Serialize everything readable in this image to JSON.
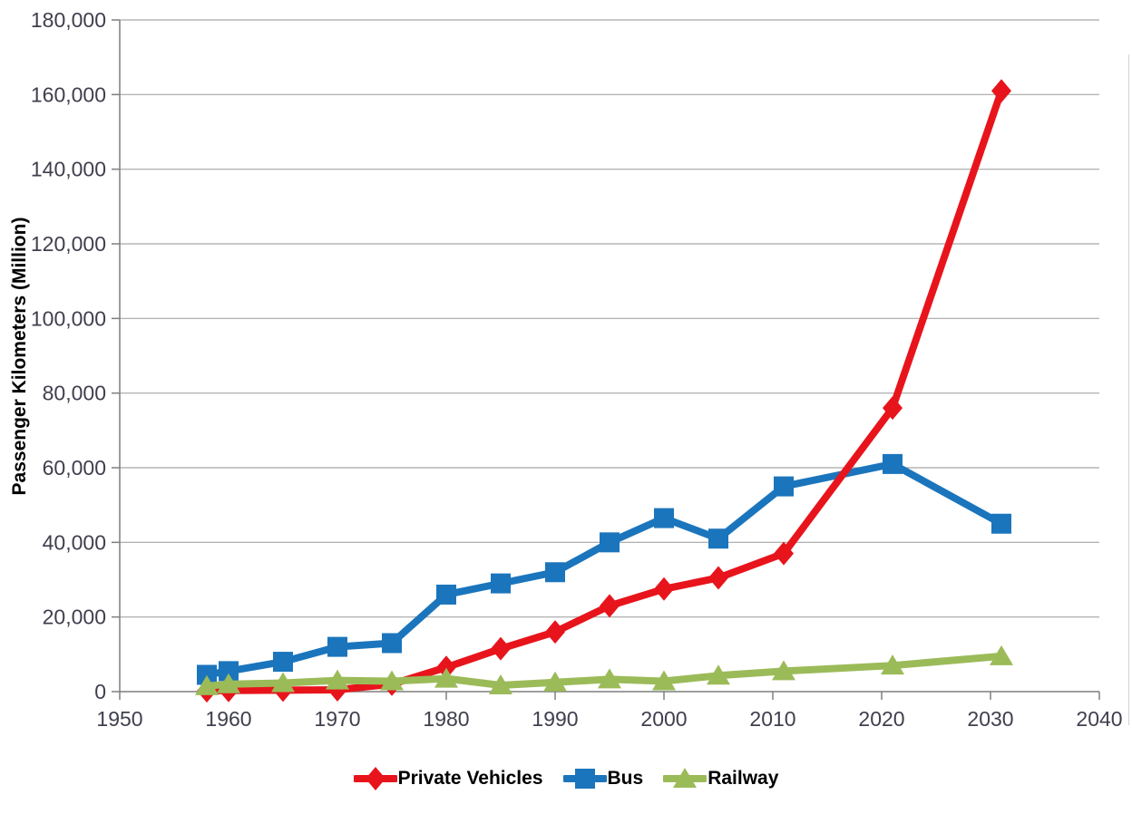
{
  "page": {
    "background": "#ffffff",
    "frame_edge_color": "#d4d4d4"
  },
  "chart_data": {
    "type": "line",
    "title": "",
    "xlabel": "",
    "ylabel": "Passenger Kilometers (Million)",
    "xlim": [
      1950,
      2040
    ],
    "ylim": [
      0,
      180000
    ],
    "grid": "horizontal",
    "legend_position": "bottom",
    "x_ticks": [
      1950,
      1960,
      1970,
      1980,
      1990,
      2000,
      2010,
      2020,
      2030,
      2040
    ],
    "x_tick_labels": [
      "1950",
      "1960",
      "1970",
      "1980",
      "1990",
      "2000",
      "2010",
      "2020",
      "2030",
      "2040"
    ],
    "y_ticks": [
      0,
      20000,
      40000,
      60000,
      80000,
      100000,
      120000,
      140000,
      160000,
      180000
    ],
    "y_tick_labels": [
      "0",
      "20,000",
      "40,000",
      "60,000",
      "80,000",
      "100,000",
      "120,000",
      "140,000",
      "160,000",
      "180,000"
    ],
    "x": [
      1958,
      1960,
      1965,
      1970,
      1975,
      1980,
      1985,
      1990,
      1995,
      2000,
      2005,
      2011,
      2021,
      2031
    ],
    "series": [
      {
        "name": "Private Vehicles",
        "color": "#e8141c",
        "marker": "diamond",
        "values": [
          200,
          300,
          400,
          500,
          2000,
          6500,
          11500,
          16000,
          23000,
          27500,
          30500,
          37000,
          76000,
          161000
        ]
      },
      {
        "name": "Bus",
        "color": "#1b75bc",
        "marker": "square",
        "values": [
          4500,
          5500,
          8000,
          12000,
          13000,
          26000,
          29000,
          32000,
          40000,
          46500,
          41000,
          55000,
          61000,
          45000
        ]
      },
      {
        "name": "Railway",
        "color": "#9bbb59",
        "marker": "triangle",
        "values": [
          1500,
          2000,
          2300,
          3000,
          2800,
          3500,
          1700,
          2500,
          3300,
          2800,
          4300,
          5500,
          7000,
          9500
        ]
      }
    ],
    "z_order": [
      1,
      0,
      2
    ],
    "style": {
      "gridline_color": "#a6a6a6",
      "axis_color": "#7f7f7f",
      "tick_label_color": "#3f3f4e",
      "line_width": 8
    }
  }
}
